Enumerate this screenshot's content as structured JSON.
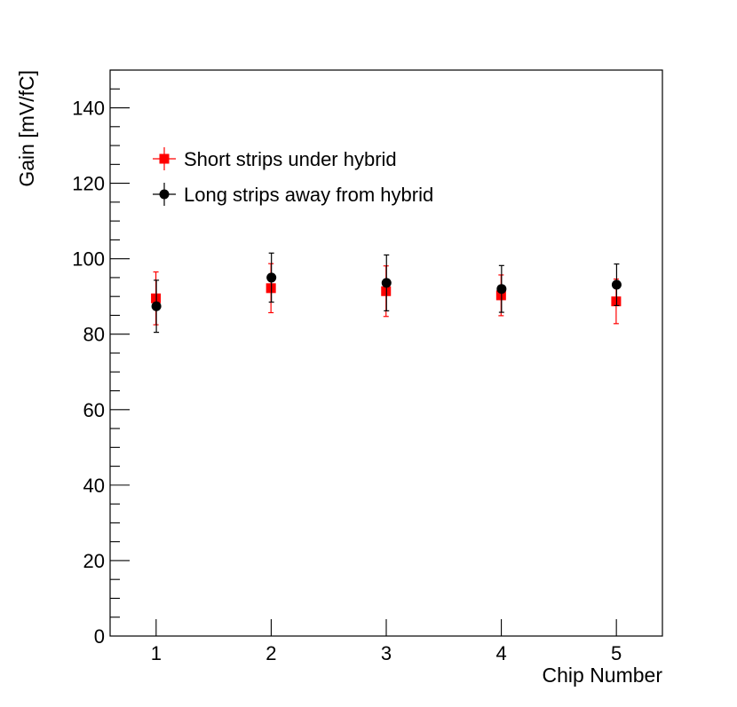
{
  "chart_data": {
    "type": "scatter",
    "title": "",
    "xlabel": "Chip Number",
    "ylabel": "Gain [mV/fC]",
    "xlim": [
      0.6,
      5.4
    ],
    "ylim": [
      0,
      150
    ],
    "x_ticks": [
      1,
      2,
      3,
      4,
      5
    ],
    "y_ticks": [
      0,
      20,
      40,
      60,
      80,
      100,
      120,
      140
    ],
    "legend_position": "top-left",
    "grid": false,
    "series": [
      {
        "name": "Short strips under hybrid",
        "marker": "square",
        "color": "#ff0000",
        "x": [
          1,
          2,
          3,
          4,
          5
        ],
        "y": [
          89.5,
          92.2,
          91.4,
          90.3,
          88.7
        ],
        "yerr": [
          7.0,
          6.5,
          6.7,
          5.4,
          5.9
        ]
      },
      {
        "name": "Long strips away from hybrid",
        "marker": "circle",
        "color": "#000000",
        "x": [
          1,
          2,
          3,
          4,
          5
        ],
        "y": [
          87.4,
          95.0,
          93.6,
          92.0,
          93.1
        ],
        "yerr": [
          6.9,
          6.5,
          7.4,
          6.2,
          5.5
        ]
      }
    ]
  }
}
